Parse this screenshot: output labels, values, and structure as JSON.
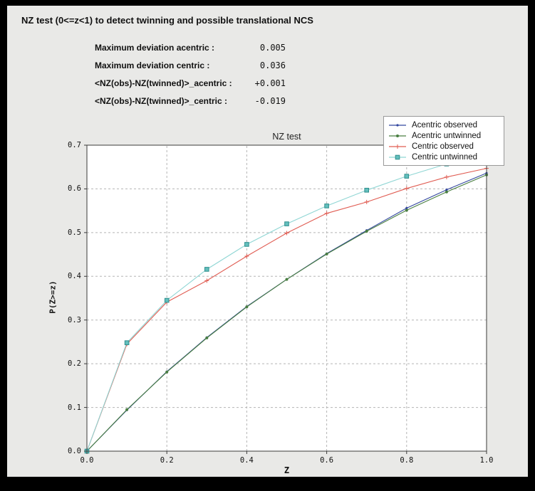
{
  "window": {
    "outer_bg": "#000000",
    "panel_bg": "#e9e9e7"
  },
  "header": {
    "title": "NZ test (0<=z<1) to detect twinning and possible translational NCS"
  },
  "stats": {
    "rows": [
      {
        "label": "Maximum deviation acentric :",
        "value": "0.005"
      },
      {
        "label": "Maximum deviation centric :",
        "value": "0.036"
      },
      {
        "label": "<NZ(obs)-NZ(twinned)>_acentric :",
        "value": "+0.001"
      },
      {
        "label": "<NZ(obs)-NZ(twinned)>_centric :",
        "value": "-0.019"
      }
    ]
  },
  "chart_data": {
    "type": "line",
    "title": "NZ test",
    "xlabel": "Z",
    "ylabel": "P(Z>=z)",
    "xlim": [
      0.0,
      1.0
    ],
    "ylim": [
      0.0,
      0.7
    ],
    "x_ticks": [
      "0.0",
      "0.2",
      "0.4",
      "0.6",
      "0.8",
      "1.0"
    ],
    "y_ticks": [
      "0.0",
      "0.1",
      "0.2",
      "0.3",
      "0.4",
      "0.5",
      "0.6",
      "0.7"
    ],
    "grid": "dashed",
    "legend_position": "top-right",
    "colors": {
      "plot_bg": "#ffffff",
      "grid": "#b5b5b5",
      "frame": "#3a3a3a"
    },
    "x": [
      0.0,
      0.1,
      0.2,
      0.3,
      0.4,
      0.5,
      0.6,
      0.7,
      0.8,
      0.9,
      1.0
    ],
    "series": [
      {
        "name": "Acentric observed",
        "color": "#33479f",
        "marker": "dot",
        "marker_size": 1.6,
        "values": [
          0.0,
          0.094,
          0.182,
          0.26,
          0.331,
          0.393,
          0.452,
          0.505,
          0.556,
          0.598,
          0.636
        ]
      },
      {
        "name": "Acentric untwinned",
        "color": "#4a7f42",
        "marker": "dot",
        "marker_size": 2.0,
        "values": [
          0.0,
          0.095,
          0.181,
          0.259,
          0.33,
          0.393,
          0.451,
          0.503,
          0.551,
          0.593,
          0.632
        ]
      },
      {
        "name": "Centric observed",
        "color": "#e05c52",
        "marker": "plus",
        "values": [
          0.0,
          0.245,
          0.341,
          0.39,
          0.446,
          0.499,
          0.544,
          0.57,
          0.601,
          0.627,
          0.647
        ]
      },
      {
        "name": "Centric untwinned",
        "color": "#8fd6d4",
        "marker": "square",
        "marker_fill": "#63bfbd",
        "marker_edge": "#2f8f8d",
        "values": [
          0.0,
          0.248,
          0.345,
          0.416,
          0.473,
          0.52,
          0.561,
          0.597,
          0.629,
          0.657,
          0.683
        ]
      }
    ]
  }
}
